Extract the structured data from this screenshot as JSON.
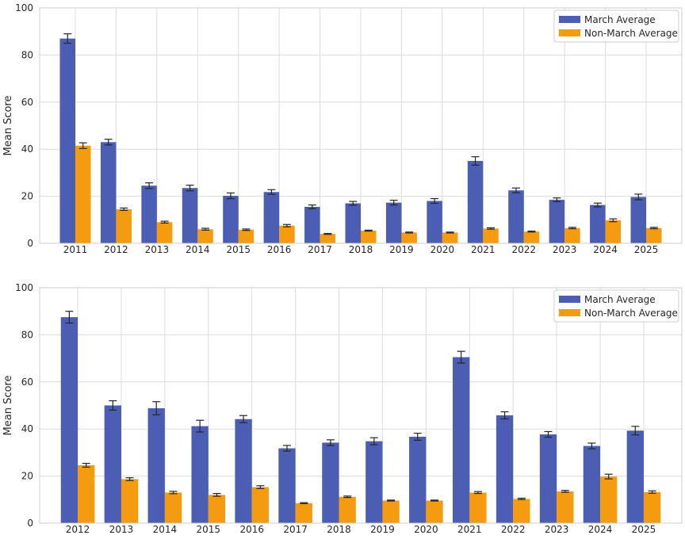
{
  "chart_data": [
    {
      "type": "bar",
      "title": "",
      "xlabel": "",
      "ylabel": "Mean Score",
      "ylim": [
        0,
        100
      ],
      "yticks": [
        0,
        20,
        40,
        60,
        80,
        100
      ],
      "grid": true,
      "legend_position": "top-right",
      "categories": [
        "2011",
        "2012",
        "2013",
        "2014",
        "2015",
        "2016",
        "2017",
        "2018",
        "2019",
        "2020",
        "2021",
        "2022",
        "2023",
        "2024",
        "2025"
      ],
      "series": [
        {
          "name": "March Average",
          "color": "#4c5eb3",
          "values": [
            87.0,
            43.0,
            24.5,
            23.5,
            20.2,
            21.8,
            15.5,
            17.0,
            17.3,
            18.0,
            35.0,
            22.5,
            18.5,
            16.3,
            19.7
          ],
          "errors": [
            2.0,
            1.2,
            1.2,
            1.2,
            1.2,
            1.0,
            0.8,
            0.8,
            1.0,
            1.0,
            1.8,
            1.0,
            0.8,
            0.8,
            1.2
          ]
        },
        {
          "name": "Non-March Average",
          "color": "#f59b10",
          "values": [
            41.5,
            14.5,
            9.0,
            6.0,
            5.8,
            7.5,
            4.0,
            5.4,
            4.6,
            4.6,
            6.3,
            5.0,
            6.5,
            9.8,
            6.5
          ],
          "errors": [
            1.2,
            0.5,
            0.4,
            0.4,
            0.3,
            0.5,
            0.2,
            0.2,
            0.2,
            0.2,
            0.3,
            0.2,
            0.3,
            0.6,
            0.3
          ]
        }
      ]
    },
    {
      "type": "bar",
      "title": "",
      "xlabel": "",
      "ylabel": "Mean Score",
      "ylim": [
        0,
        100
      ],
      "yticks": [
        0,
        20,
        40,
        60,
        80,
        100
      ],
      "grid": true,
      "legend_position": "top-right",
      "categories": [
        "2012",
        "2013",
        "2014",
        "2015",
        "2016",
        "2017",
        "2018",
        "2019",
        "2020",
        "2021",
        "2022",
        "2023",
        "2024",
        "2025"
      ],
      "series": [
        {
          "name": "March Average",
          "color": "#4c5eb3",
          "values": [
            87.5,
            50.0,
            48.8,
            41.2,
            44.2,
            31.8,
            34.2,
            34.8,
            36.7,
            70.5,
            45.8,
            37.7,
            32.8,
            39.3
          ],
          "errors": [
            2.5,
            2.0,
            2.8,
            2.5,
            1.5,
            1.2,
            1.2,
            1.5,
            1.5,
            2.5,
            1.5,
            1.2,
            1.2,
            1.8
          ]
        },
        {
          "name": "Non-March Average",
          "color": "#f59b10",
          "values": [
            24.6,
            18.7,
            13.0,
            12.0,
            15.3,
            8.5,
            11.2,
            9.6,
            9.6,
            13.0,
            10.3,
            13.5,
            19.8,
            13.2
          ],
          "errors": [
            0.8,
            0.6,
            0.5,
            0.6,
            0.6,
            0.2,
            0.3,
            0.2,
            0.2,
            0.4,
            0.3,
            0.4,
            1.0,
            0.5
          ]
        }
      ]
    }
  ]
}
